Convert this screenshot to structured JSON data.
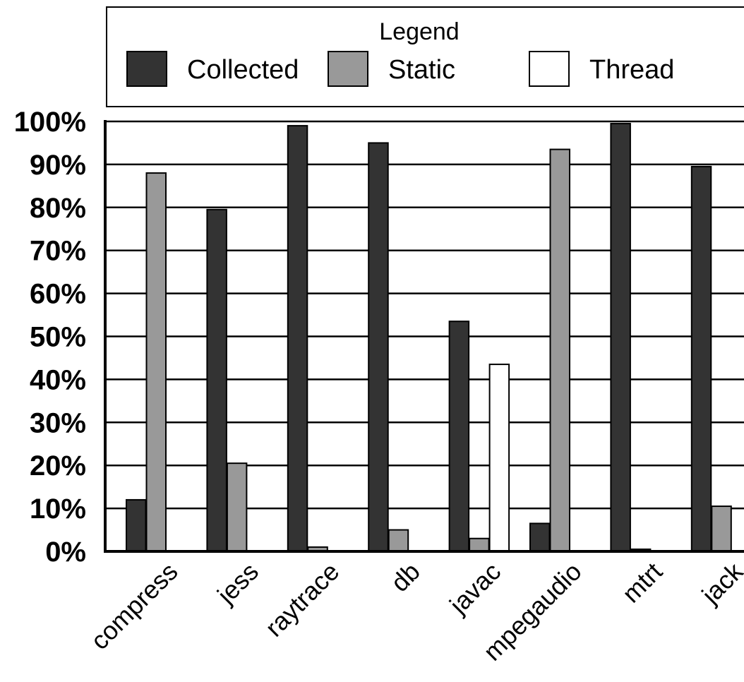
{
  "chart_data": {
    "type": "bar",
    "categories": [
      "compress",
      "jess",
      "raytrace",
      "db",
      "javac",
      "mpegaudio",
      "mtrt",
      "jack"
    ],
    "series": [
      {
        "name": "Collected",
        "color": "#333333",
        "values": [
          12,
          79.5,
          99,
          95,
          53.5,
          6.5,
          99.5,
          89.5
        ]
      },
      {
        "name": "Static",
        "color": "#999999",
        "values": [
          88,
          20.5,
          1,
          5,
          3,
          93.5,
          0.5,
          10.5
        ]
      },
      {
        "name": "Thread",
        "color": "#ffffff",
        "values": [
          0,
          0,
          0,
          0,
          43.5,
          0,
          0,
          0
        ]
      }
    ],
    "yticks": [
      "0%",
      "10%",
      "20%",
      "30%",
      "40%",
      "50%",
      "60%",
      "70%",
      "80%",
      "90%",
      "100%"
    ],
    "ylim": [
      0,
      100
    ],
    "grid": true,
    "legend": {
      "title": "Legend",
      "placement": "top"
    }
  }
}
